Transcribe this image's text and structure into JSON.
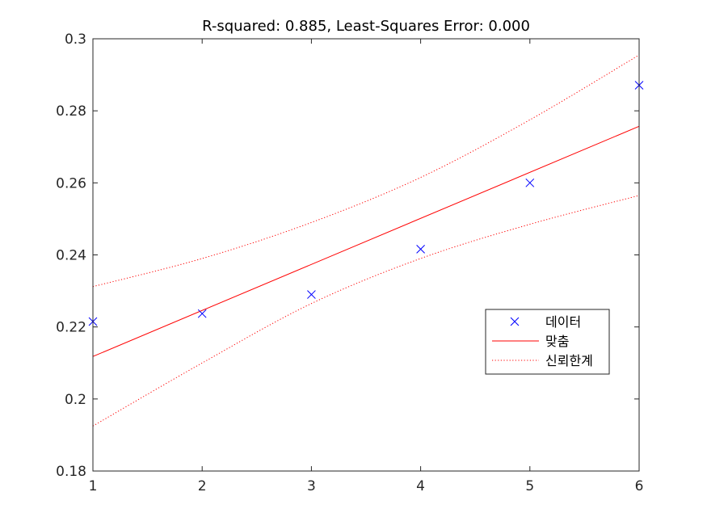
{
  "chart_data": {
    "type": "line",
    "title": "R-squared: 0.885, Least-Squares Error: 0.000",
    "xlabel": "",
    "ylabel": "",
    "xlim": [
      1,
      6
    ],
    "ylim": [
      0.18,
      0.3
    ],
    "x_ticks": [
      1,
      2,
      3,
      4,
      5,
      6
    ],
    "y_ticks": [
      0.18,
      0.2,
      0.22,
      0.24,
      0.26,
      0.28,
      0.3
    ],
    "y_tick_labels": [
      "0.18",
      "0.2",
      "0.22",
      "0.24",
      "0.26",
      "0.28",
      "0.3"
    ],
    "x_tick_labels": [
      "1",
      "2",
      "3",
      "4",
      "5",
      "6"
    ],
    "grid": false,
    "legend_position": "right",
    "series": [
      {
        "name": "데이터",
        "kind": "scatter",
        "marker": "x",
        "color": "#0000ff",
        "x": [
          1,
          2,
          3,
          4,
          5,
          6
        ],
        "y": [
          0.2215,
          0.2237,
          0.229,
          0.2416,
          0.26,
          0.2871
        ]
      },
      {
        "name": "맞춤",
        "kind": "line",
        "style": "solid",
        "color": "#ff0000",
        "x": [
          1,
          6
        ],
        "y": [
          0.2118,
          0.2757
        ]
      },
      {
        "name": "신뢰한계",
        "kind": "band",
        "style": "dotted",
        "color": "#ff0000",
        "x": [
          1,
          2,
          3,
          4,
          5,
          6
        ],
        "upper": [
          0.2312,
          0.239,
          0.249,
          0.2615,
          0.2775,
          0.2955
        ],
        "lower": [
          0.1925,
          0.21,
          0.2265,
          0.239,
          0.2485,
          0.2565
        ]
      }
    ]
  }
}
